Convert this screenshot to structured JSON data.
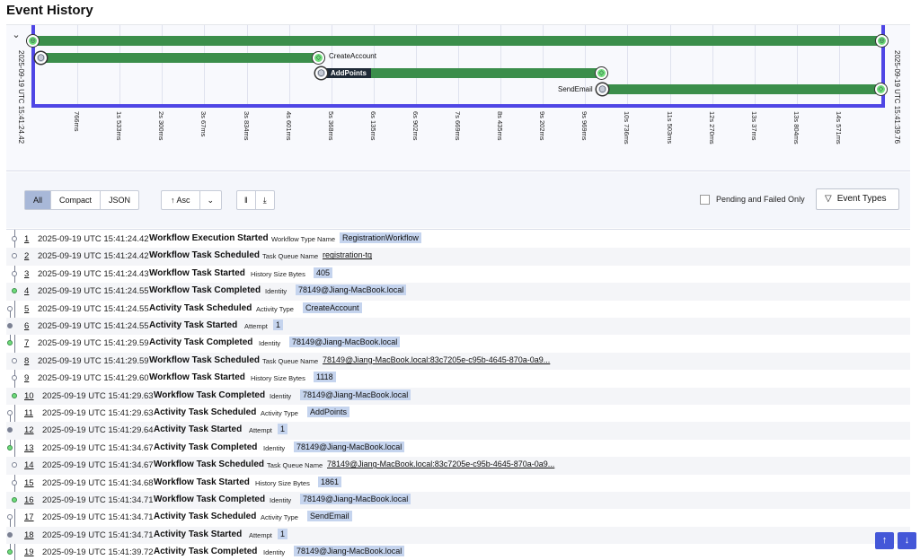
{
  "page_title": "Event History",
  "timeline": {
    "start_label": "2025-09-19 UTC 15:41:24.42",
    "end_label": "2025-09-19 UTC 15:41:39.76",
    "ticks": [
      "766ms",
      "1s 533ms",
      "2s 300ms",
      "3s 67ms",
      "3s 834ms",
      "4s 601ms",
      "5s 368ms",
      "6s 135ms",
      "6s 902ms",
      "7s 669ms",
      "8s 435ms",
      "9s 202ms",
      "9s 969ms",
      "10s 736ms",
      "11s 503ms",
      "12s 270ms",
      "13s 37ms",
      "13s 804ms",
      "14s 571ms"
    ],
    "activities": [
      "CreateAccount",
      "AddPoints",
      "SendEmail"
    ],
    "bar_color": "#3b8e4b",
    "axis_color": "#4f46e5"
  },
  "toolbar": {
    "view_options": [
      "All",
      "Compact",
      "JSON"
    ],
    "active_view": "All",
    "sort_label": "Asc",
    "pending_label": "Pending and Failed Only",
    "event_types_label": "Event Types"
  },
  "events": [
    {
      "id": "1",
      "time": "2025-09-19 UTC 15:41:24.42",
      "type": "Workflow Execution Started",
      "attr_key": "Workflow Type Name",
      "attr_val": "RegistrationWorkflow",
      "style": "badge"
    },
    {
      "id": "2",
      "time": "2025-09-19 UTC 15:41:24.42",
      "type": "Workflow Task Scheduled",
      "attr_key": "Task Queue Name",
      "attr_val": "registration-tq",
      "style": "link"
    },
    {
      "id": "3",
      "time": "2025-09-19 UTC 15:41:24.43",
      "type": "Workflow Task Started",
      "attr_key": "History Size Bytes",
      "attr_val": "405",
      "style": "badge"
    },
    {
      "id": "4",
      "time": "2025-09-19 UTC 15:41:24.55",
      "type": "Workflow Task Completed",
      "attr_key": "Identity",
      "attr_val": "78149@Jiang-MacBook.local",
      "style": "badge"
    },
    {
      "id": "5",
      "time": "2025-09-19 UTC 15:41:24.55",
      "type": "Activity Task Scheduled",
      "attr_key": "Activity Type",
      "attr_val": "CreateAccount",
      "style": "badge"
    },
    {
      "id": "6",
      "time": "2025-09-19 UTC 15:41:24.55",
      "type": "Activity Task Started",
      "attr_key": "Attempt",
      "attr_val": "1",
      "style": "badge"
    },
    {
      "id": "7",
      "time": "2025-09-19 UTC 15:41:29.59",
      "type": "Activity Task Completed",
      "attr_key": "Identity",
      "attr_val": "78149@Jiang-MacBook.local",
      "style": "badge"
    },
    {
      "id": "8",
      "time": "2025-09-19 UTC 15:41:29.59",
      "type": "Workflow Task Scheduled",
      "attr_key": "Task Queue Name",
      "attr_val": "78149@Jiang-MacBook.local:83c7205e-c95b-4645-870a-0a9...",
      "style": "link"
    },
    {
      "id": "9",
      "time": "2025-09-19 UTC 15:41:29.60",
      "type": "Workflow Task Started",
      "attr_key": "History Size Bytes",
      "attr_val": "1118",
      "style": "badge"
    },
    {
      "id": "10",
      "time": "2025-09-19 UTC 15:41:29.63",
      "type": "Workflow Task Completed",
      "attr_key": "Identity",
      "attr_val": "78149@Jiang-MacBook.local",
      "style": "badge"
    },
    {
      "id": "11",
      "time": "2025-09-19 UTC 15:41:29.63",
      "type": "Activity Task Scheduled",
      "attr_key": "Activity Type",
      "attr_val": "AddPoints",
      "style": "badge"
    },
    {
      "id": "12",
      "time": "2025-09-19 UTC 15:41:29.64",
      "type": "Activity Task Started",
      "attr_key": "Attempt",
      "attr_val": "1",
      "style": "badge"
    },
    {
      "id": "13",
      "time": "2025-09-19 UTC 15:41:34.67",
      "type": "Activity Task Completed",
      "attr_key": "Identity",
      "attr_val": "78149@Jiang-MacBook.local",
      "style": "badge"
    },
    {
      "id": "14",
      "time": "2025-09-19 UTC 15:41:34.67",
      "type": "Workflow Task Scheduled",
      "attr_key": "Task Queue Name",
      "attr_val": "78149@Jiang-MacBook.local:83c7205e-c95b-4645-870a-0a9...",
      "style": "link"
    },
    {
      "id": "15",
      "time": "2025-09-19 UTC 15:41:34.68",
      "type": "Workflow Task Started",
      "attr_key": "History Size Bytes",
      "attr_val": "1861",
      "style": "badge"
    },
    {
      "id": "16",
      "time": "2025-09-19 UTC 15:41:34.71",
      "type": "Workflow Task Completed",
      "attr_key": "Identity",
      "attr_val": "78149@Jiang-MacBook.local",
      "style": "badge"
    },
    {
      "id": "17",
      "time": "2025-09-19 UTC 15:41:34.71",
      "type": "Activity Task Scheduled",
      "attr_key": "Activity Type",
      "attr_val": "SendEmail",
      "style": "badge"
    },
    {
      "id": "18",
      "time": "2025-09-19 UTC 15:41:34.71",
      "type": "Activity Task Started",
      "attr_key": "Attempt",
      "attr_val": "1",
      "style": "badge"
    },
    {
      "id": "19",
      "time": "2025-09-19 UTC 15:41:39.72",
      "type": "Activity Task Completed",
      "attr_key": "Identity",
      "attr_val": "78149@Jiang-MacBook.local",
      "style": "badge"
    }
  ]
}
